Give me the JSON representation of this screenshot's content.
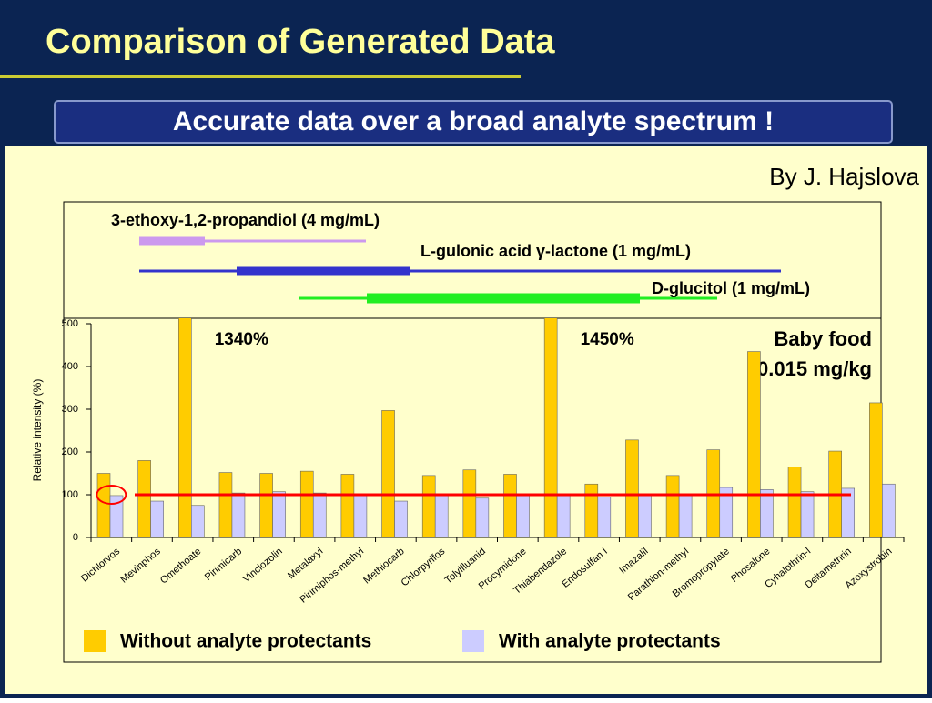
{
  "title": "Comparison of Generated Data",
  "subtitle": "Accurate data over a broad analyte spectrum !",
  "author": "By J. Hajslova",
  "range_labels": [
    "3-ethoxy-1,2-propandiol (4 mg/mL)",
    "L-gulonic acid γ-lactone (1 mg/mL)",
    "D-glucitol (1 mg/mL)"
  ],
  "chart_data": {
    "type": "bar",
    "ylabel": "Relative intensity (%)",
    "categories": [
      "Dichlorvos",
      "Mevinphos",
      "Omethoate",
      "Pirimicarb",
      "Vinclozolin",
      "Metalaxyl",
      "Pirimiphos-methyl",
      "Methiocarb",
      "Chlorpyrifos",
      "Tolylfluanid",
      "Procymidone",
      "Thiabendazole",
      "Endosulfan I",
      "Imazalil",
      "Parathion-methyl",
      "Bromopropylate",
      "Phosalone",
      "Cyhalothrin-l",
      "Deltamethrin",
      "Azoxystrobin"
    ],
    "series": [
      {
        "name": "Without analyte protectants",
        "color": "#FFCC00",
        "values": [
          150,
          180,
          1340,
          152,
          150,
          155,
          148,
          297,
          145,
          158,
          148,
          1450,
          125,
          228,
          145,
          205,
          435,
          165,
          202,
          315
        ],
        "value_labels": [
          null,
          null,
          "1340%",
          null,
          null,
          null,
          null,
          null,
          null,
          null,
          null,
          "1450%",
          null,
          null,
          null,
          null,
          null,
          null,
          null,
          null
        ]
      },
      {
        "name": "With analyte protectants",
        "color": "#CCCCFF",
        "values": [
          98,
          85,
          75,
          104,
          107,
          104,
          100,
          85,
          100,
          92,
          100,
          100,
          95,
          100,
          100,
          117,
          112,
          107,
          115,
          125
        ]
      }
    ],
    "reference_line": 100,
    "annotations": [
      "Baby food",
      "0.015 mg/kg"
    ],
    "ylim": [
      0,
      500
    ],
    "yticks": [
      0,
      100,
      200,
      300,
      400,
      500
    ]
  }
}
